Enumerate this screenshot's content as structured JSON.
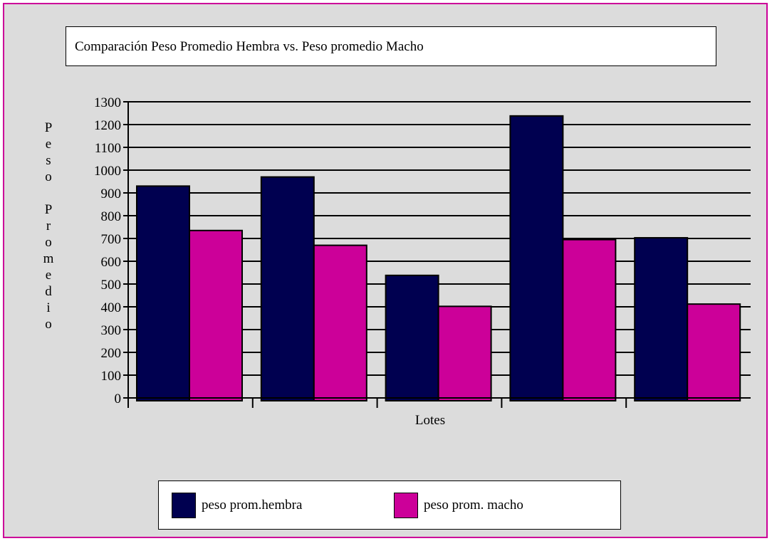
{
  "chart_data": {
    "type": "bar",
    "title": "Comparación Peso Promedio Hembra vs. Peso promedio Macho",
    "ylabel": "Peso Promedio",
    "xlabel": "Lotes",
    "ylim": [
      0,
      1300
    ],
    "yticks": [
      "0",
      "100",
      "200",
      "300",
      "400",
      "500",
      "600",
      "700",
      "800",
      "900",
      "1000",
      "1100",
      "1200",
      "1300"
    ],
    "categories": [
      "",
      "",
      "",
      "",
      ""
    ],
    "grid": true,
    "legend_position": "bottom",
    "series": [
      {
        "name": "peso prom.hembra",
        "color": "#000050",
        "values": [
          930,
          970,
          538,
          1238,
          703
        ]
      },
      {
        "name": "peso prom. macho",
        "color": "#cc0099",
        "values": [
          735,
          670,
          402,
          695,
          412
        ]
      }
    ]
  }
}
